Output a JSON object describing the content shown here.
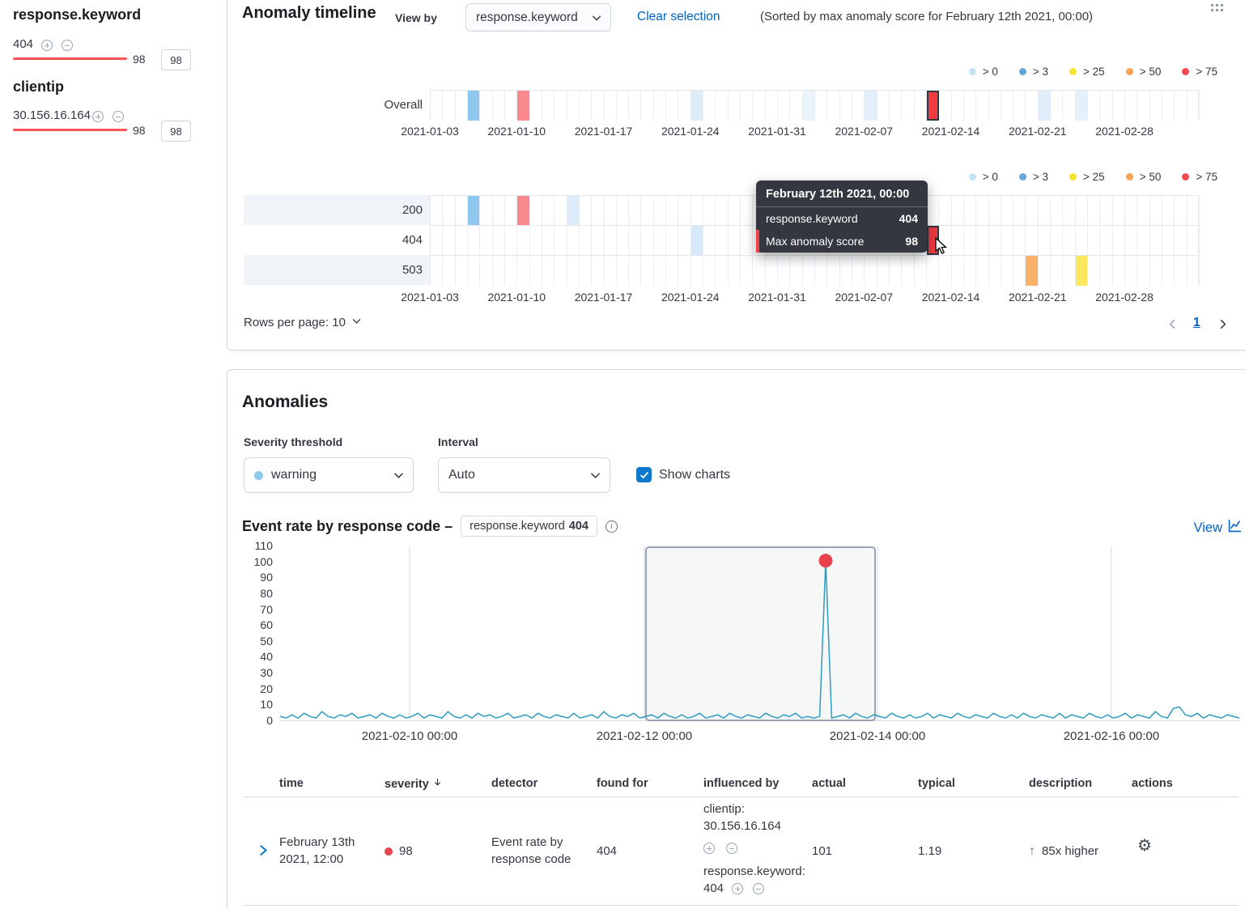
{
  "colors": {
    "link": "#0061c2",
    "text": "#343741",
    "score_bar": "#ff5257",
    "checkbox": "#0d77cc",
    "severity_dot": "#8ec9ee",
    "table_severity_dot": "#e7424d",
    "tooltip_marker": "#f0424a"
  },
  "sidebar": {
    "groups": [
      {
        "title": "response.keyword",
        "item": "404",
        "score": "98",
        "badge": "98"
      },
      {
        "title": "clientip",
        "item": "30.156.16.164",
        "score": "98",
        "badge": "98"
      }
    ]
  },
  "timeline": {
    "title": "Anomaly timeline",
    "view_by_label": "View by",
    "view_by_value": "response.keyword",
    "clear_selection": "Clear selection",
    "sorted_note": "(Sorted by max anomaly score for February 12th 2021, 00:00)",
    "legend": [
      {
        "label": "> 0",
        "color": "#c3e3f7"
      },
      {
        "label": "> 3",
        "color": "#64a7db"
      },
      {
        "label": "> 25",
        "color": "#f5e32e"
      },
      {
        "label": "> 50",
        "color": "#f5a352"
      },
      {
        "label": "> 75",
        "color": "#f04a52"
      }
    ],
    "x_labels": [
      "2021-01-03",
      "2021-01-10",
      "2021-01-17",
      "2021-01-24",
      "2021-01-31",
      "2021-02-07",
      "2021-02-14",
      "2021-02-21",
      "2021-02-28"
    ],
    "columns": 62,
    "overall": {
      "label": "Overall",
      "cells": [
        {
          "col": 3,
          "color": "#8fc7ef"
        },
        {
          "col": 7,
          "color": "#f9898d"
        },
        {
          "col": 21,
          "color": "#dcecf9"
        },
        {
          "col": 30,
          "color": "#eaf4fb"
        },
        {
          "col": 35,
          "color": "#e2effa"
        },
        {
          "col": 40,
          "color": "#f33a41",
          "selected": true
        },
        {
          "col": 49,
          "color": "#dfeefa"
        },
        {
          "col": 52,
          "color": "#e4f0fa"
        }
      ]
    },
    "lanes": [
      {
        "label": "200",
        "striped": true,
        "cells": [
          {
            "col": 3,
            "color": "#8fc7ef"
          },
          {
            "col": 7,
            "color": "#f9898d"
          },
          {
            "col": 11,
            "color": "#dcecf9"
          }
        ]
      },
      {
        "label": "404",
        "striped": false,
        "cells": [
          {
            "col": 21,
            "color": "#d5e9f8"
          },
          {
            "col": 40,
            "color": "#f33a41",
            "selected": true
          }
        ]
      },
      {
        "label": "503",
        "striped": true,
        "cells": [
          {
            "col": 48,
            "color": "#f9b267"
          },
          {
            "col": 52,
            "color": "#fbe75c"
          }
        ]
      }
    ],
    "tooltip": {
      "title": "February 12th 2021, 00:00",
      "rows": [
        {
          "label": "response.keyword",
          "value": "404"
        },
        {
          "label": "Max anomaly score",
          "value": "98",
          "marker": true
        }
      ]
    },
    "rows_per_page": "Rows per page: 10",
    "page": "1"
  },
  "anomalies": {
    "title": "Anomalies",
    "severity_label": "Severity threshold",
    "severity_value": "warning",
    "interval_label": "Interval",
    "interval_value": "Auto",
    "show_charts_label": "Show charts",
    "chart_heading": "Event rate by response code –",
    "badge_field": "response.keyword",
    "badge_value": "404",
    "view_label": "View",
    "table": {
      "headers": [
        "time",
        "severity",
        "detector",
        "found for",
        "influenced by",
        "actual",
        "typical",
        "description",
        "actions"
      ],
      "rows": [
        {
          "time": "February 13th 2021, 12:00",
          "severity": "98",
          "detector": "Event rate by response code",
          "found_for": "404",
          "influenced_by": [
            {
              "text": "clientip: 30.156.16.164"
            },
            {
              "text": "response.keyword: 404"
            }
          ],
          "actual": "101",
          "typical": "1.19",
          "description": "85x higher"
        }
      ]
    }
  },
  "chart_data": {
    "type": "line",
    "title": "Event rate by response code",
    "ylabel": "",
    "xlabel": "",
    "ylim": [
      0,
      110
    ],
    "y_ticks": [
      110,
      100,
      90,
      80,
      70,
      60,
      50,
      40,
      30,
      20,
      10,
      0
    ],
    "x_ticks": [
      {
        "label": "2021-02-10 00:00",
        "pos": 0.135
      },
      {
        "label": "2021-02-12 00:00",
        "pos": 0.3797
      },
      {
        "label": "2021-02-14 00:00",
        "pos": 0.6228
      },
      {
        "label": "2021-02-16 00:00",
        "pos": 0.8666
      }
    ],
    "selection": {
      "start": 0.3814,
      "end": 0.6203
    },
    "anomaly_point": {
      "index": 91,
      "value": 101,
      "color": "#e7424d"
    },
    "line_color": "#2f9bc1",
    "values": [
      3,
      2,
      4,
      2,
      5,
      3,
      2,
      6,
      3,
      2,
      4,
      3,
      5,
      2,
      3,
      4,
      2,
      5,
      3,
      2,
      4,
      2,
      3,
      5,
      2,
      4,
      3,
      2,
      6,
      3,
      2,
      4,
      2,
      5,
      3,
      4,
      2,
      3,
      5,
      2,
      3,
      4,
      2,
      5,
      3,
      2,
      4,
      3,
      2,
      5,
      2,
      3,
      4,
      2,
      6,
      3,
      2,
      4,
      3,
      5,
      2,
      3,
      4,
      2,
      5,
      3,
      2,
      4,
      2,
      3,
      5,
      2,
      3,
      4,
      2,
      5,
      3,
      2,
      4,
      3,
      2,
      5,
      3,
      2,
      4,
      3,
      5,
      2,
      3,
      2,
      3,
      101,
      2,
      3,
      4,
      2,
      5,
      3,
      2,
      4,
      3,
      2,
      5,
      3,
      2,
      4,
      2,
      3,
      5,
      2,
      4,
      3,
      2,
      5,
      3,
      2,
      4,
      3,
      2,
      5,
      3,
      2,
      4,
      2,
      5,
      3,
      2,
      4,
      3,
      2,
      5,
      2,
      4,
      3,
      2,
      5,
      3,
      2,
      4,
      2,
      3,
      5,
      2,
      4,
      3,
      2,
      6,
      3,
      2,
      8,
      9,
      4,
      3,
      5,
      2,
      4,
      3,
      2,
      4,
      3,
      2
    ]
  }
}
